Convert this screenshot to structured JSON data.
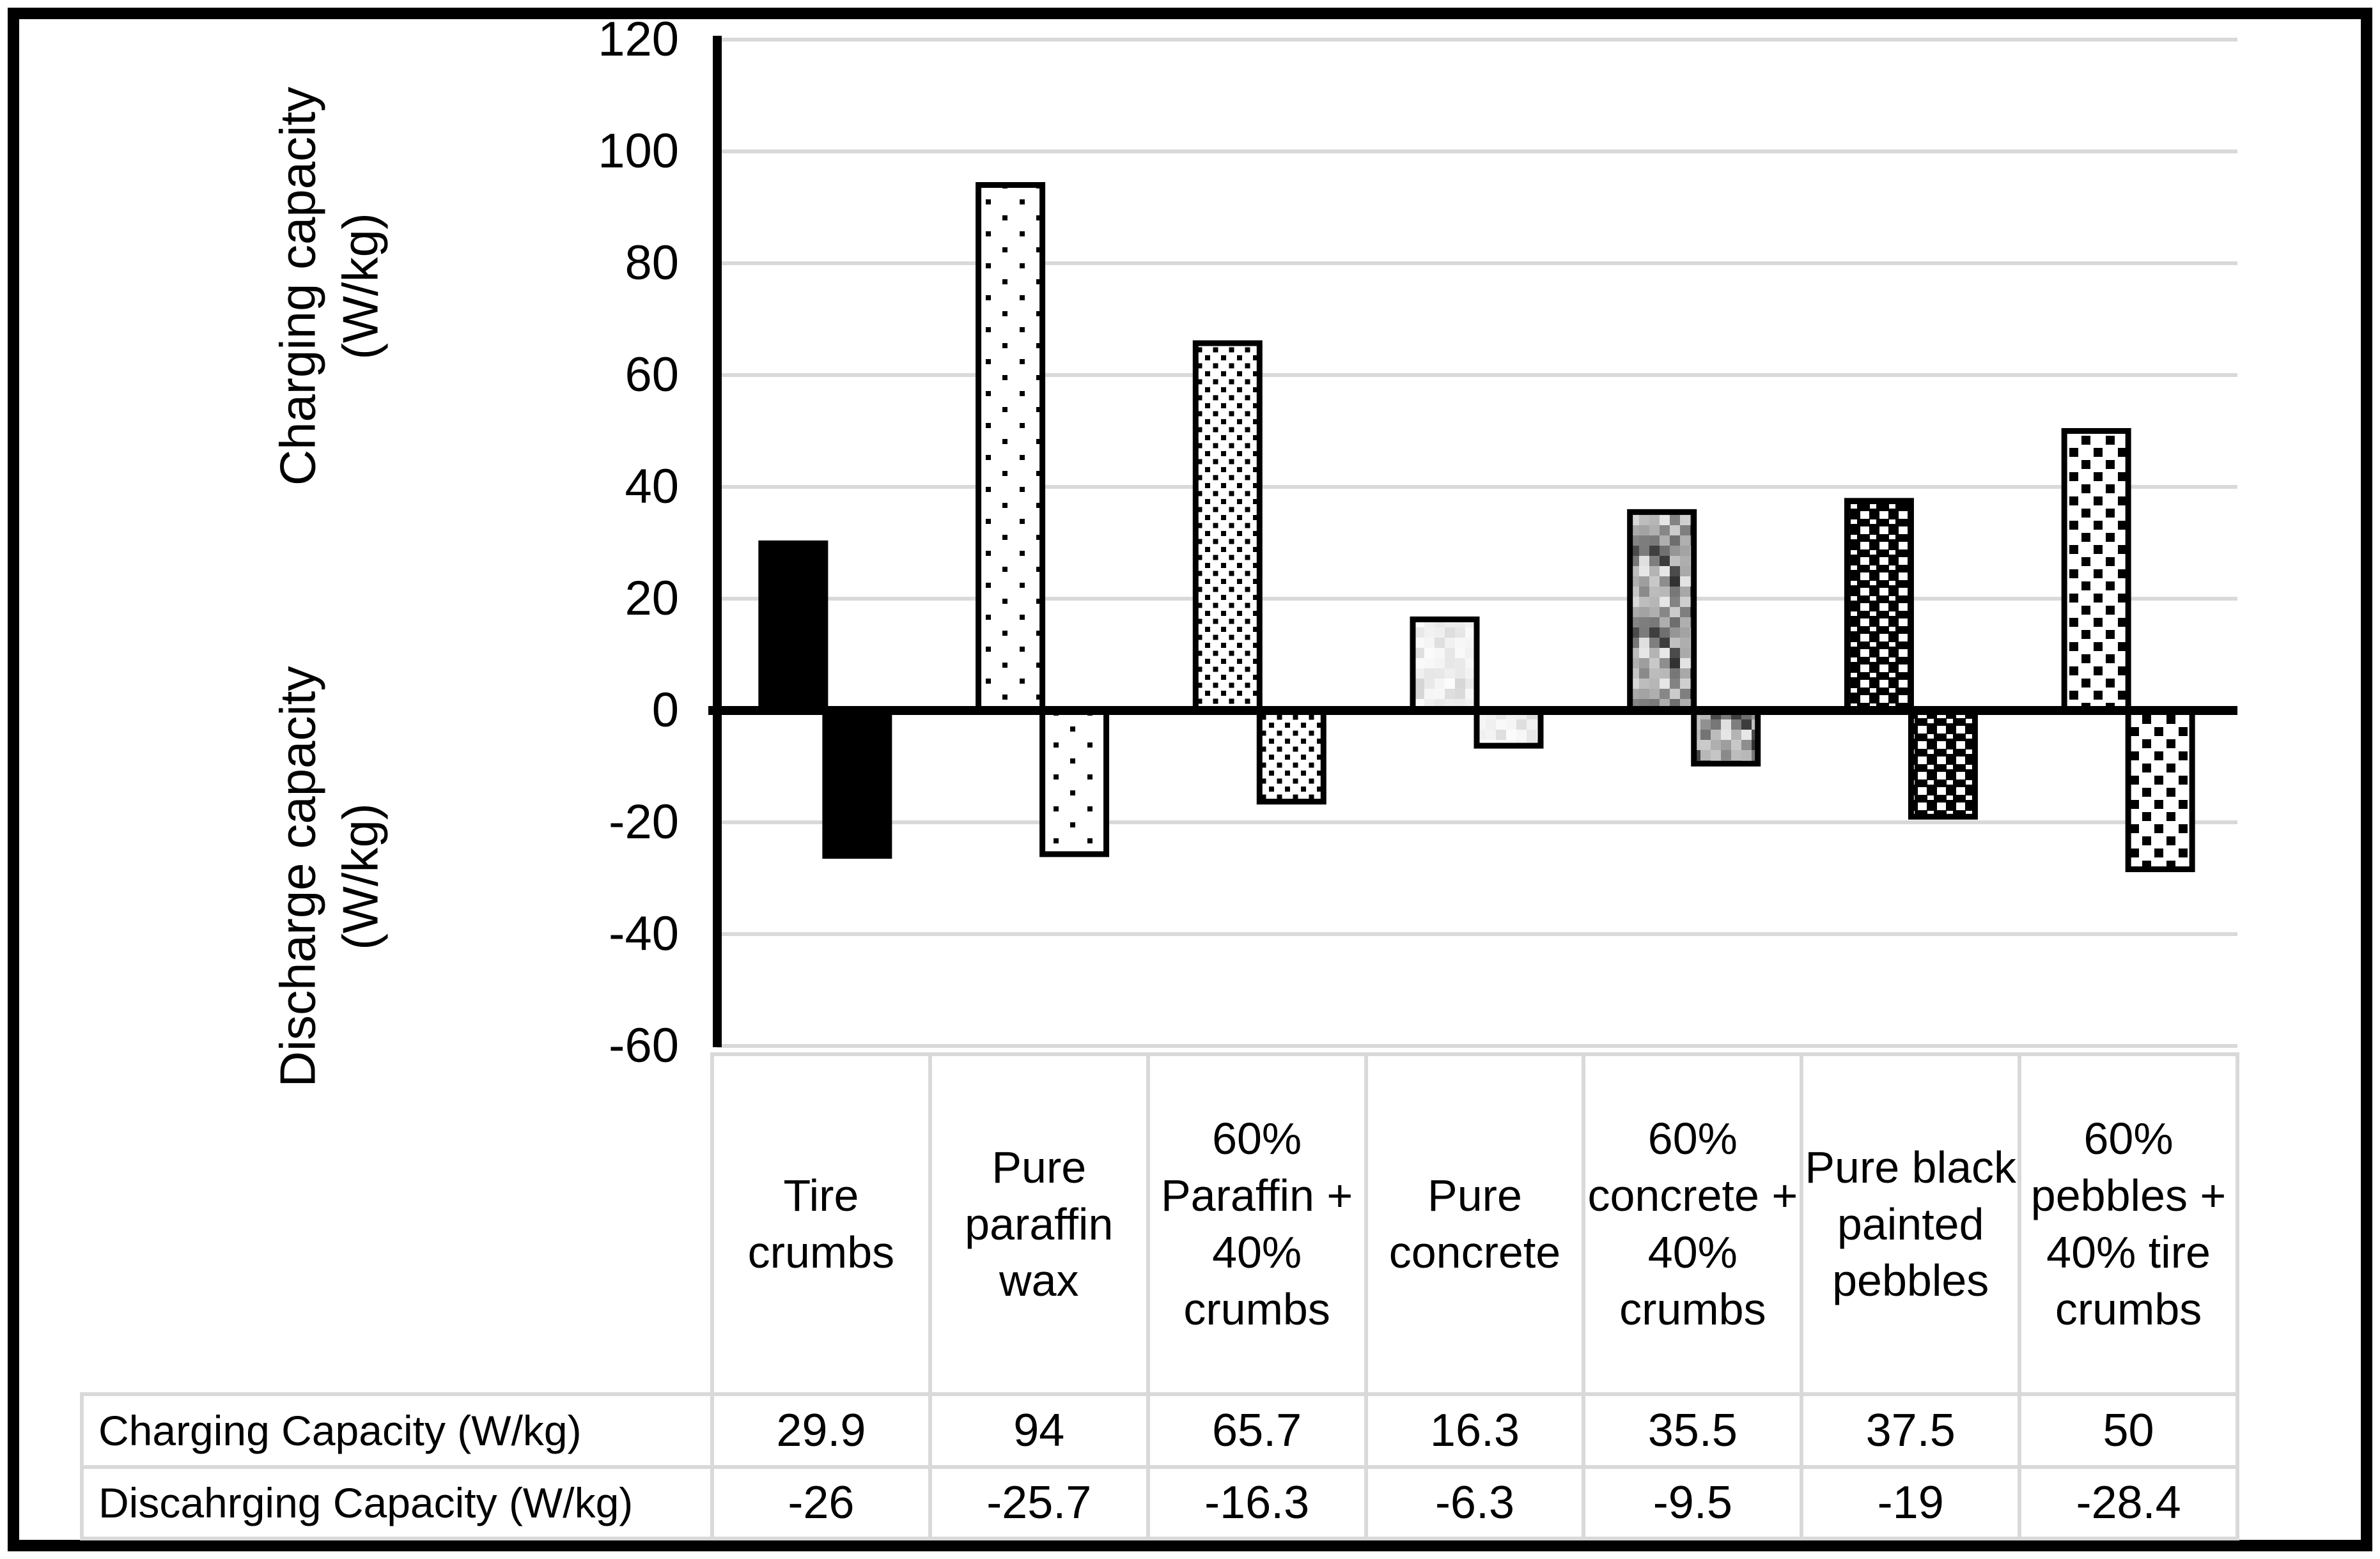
{
  "figure": {
    "background": "#ffffff",
    "border_color": "#000000"
  },
  "chart_data": {
    "type": "bar",
    "title": "",
    "categories": [
      "Tire crumbs",
      "Pure paraffin wax",
      "60% Paraffin + 40% crumbs",
      "Pure concrete",
      "60% concrete + 40% crumbs",
      "Pure black painted pebbles",
      "60% pebbles + 40% tire crumbs"
    ],
    "series": [
      {
        "name": "Charging Capacity (W/kg)",
        "values": [
          29.9,
          94,
          65.7,
          16.3,
          35.5,
          37.5,
          50
        ]
      },
      {
        "name": "Discahrging Capacity (W/kg)",
        "values": [
          -26,
          -25.7,
          -16.3,
          -6.3,
          -9.5,
          -19,
          -28.4
        ]
      }
    ],
    "y_axis": {
      "label_top": "Charging capacity\n(W/kg)",
      "label_bottom": "Discharge capacity\n(W/kg)",
      "ticks": [
        120,
        100,
        80,
        60,
        40,
        20,
        0,
        -20,
        -40,
        -60
      ],
      "range": [
        -60,
        120
      ]
    },
    "grid": true,
    "legend_position": "none",
    "bar_patterns": [
      "solid-black",
      "sparse-dots",
      "dense-dots",
      "light-concrete",
      "gray-noise",
      "black-weave",
      "dot-checker"
    ],
    "colors": {
      "gridline": "#d9d9d9",
      "axis": "#000000",
      "zero_line": "#000000",
      "bar_outline": "#000000",
      "bar_background": "#ffffff"
    }
  },
  "table": {
    "rows": [
      {
        "label": "Charging Capacity (W/kg)",
        "values": [
          "29.9",
          "94",
          "65.7",
          "16.3",
          "35.5",
          "37.5",
          "50"
        ]
      },
      {
        "label": "Discahrging Capacity (W/kg)",
        "values": [
          "-26",
          "-25.7",
          "-16.3",
          "-6.3",
          "-9.5",
          "-19",
          "-28.4"
        ]
      }
    ]
  }
}
